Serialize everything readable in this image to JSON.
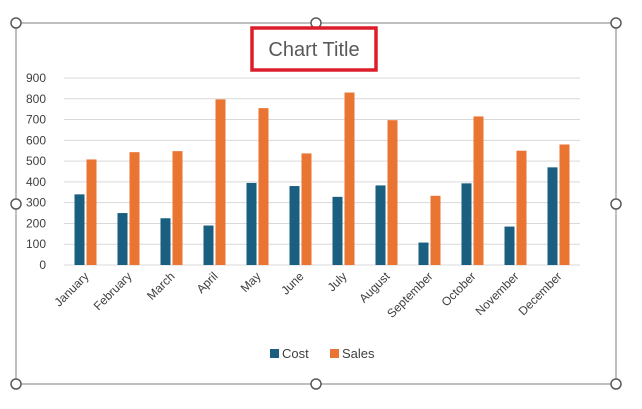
{
  "chart_data": {
    "type": "bar",
    "title": "Chart Title",
    "categories": [
      "January",
      "February",
      "March",
      "April",
      "May",
      "June",
      "July",
      "August",
      "September",
      "October",
      "November",
      "December"
    ],
    "series": [
      {
        "name": "Cost",
        "color": "#1a5f80",
        "values": [
          340,
          250,
          225,
          190,
          395,
          380,
          328,
          383,
          108,
          393,
          185,
          470
        ]
      },
      {
        "name": "Sales",
        "color": "#ea7432",
        "values": [
          508,
          543,
          548,
          797,
          755,
          537,
          830,
          697,
          333,
          715,
          550,
          580
        ]
      }
    ],
    "ylim": [
      0,
      900
    ],
    "yticks": [
      "0",
      "100",
      "200",
      "300",
      "400",
      "500",
      "600",
      "700",
      "800",
      "900"
    ],
    "grid": true,
    "legend_position": "bottom",
    "xlabel": "",
    "ylabel": ""
  },
  "colors": {
    "title_highlight": "#dc1e2b",
    "chart_frame": "#7f7f7f",
    "gridline": "#d9d9d9"
  }
}
